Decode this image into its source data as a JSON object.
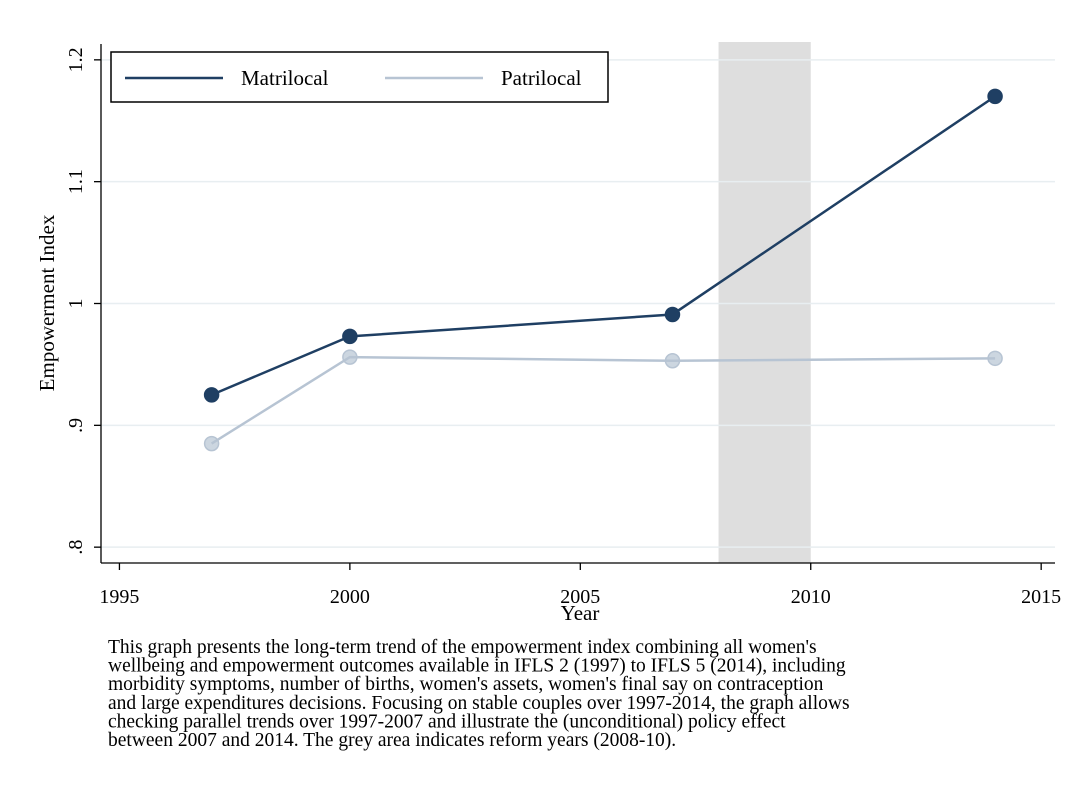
{
  "chart_data": {
    "type": "line",
    "x_label": "Year",
    "y_label": "Empowerment Index",
    "x": [
      1997,
      2000,
      2007,
      2014
    ],
    "series": [
      {
        "name": "Matrilocal",
        "color": "#1f3f63",
        "values": [
          0.925,
          0.973,
          0.991,
          1.17
        ]
      },
      {
        "name": "Patrilocal",
        "color": "#b7c4d3",
        "values": [
          0.885,
          0.956,
          0.953,
          0.955
        ]
      }
    ],
    "xlim": [
      1994.6,
      2015.3
    ],
    "xticks": [
      1995,
      2000,
      2005,
      2010,
      2015
    ],
    "ylim": [
      0.787,
      1.213
    ],
    "yticks": [
      {
        "value": 0.8,
        "label": ".8"
      },
      {
        "value": 0.9,
        "label": ".9"
      },
      1,
      1.1,
      1.2
    ],
    "grid": true,
    "legend": "top-left",
    "shade": {
      "x": [
        2008,
        2010
      ],
      "color": "#dedede"
    },
    "caption": [
      "This graph presents the long-term trend of the empowerment index combining all women's",
      "wellbeing and empowerment outcomes available in IFLS 2 (1997) to IFLS 5 (2014), including",
      "morbidity symptoms, number of births, women's assets, women's final say on contraception",
      "and large expenditures decisions. Focusing on stable couples over 1997-2014, the graph allows",
      "checking parallel trends over 1997-2007 and illustrate the (unconditional) policy effect",
      "between 2007 and 2014. The grey area indicates reform years (2008-10)."
    ]
  }
}
